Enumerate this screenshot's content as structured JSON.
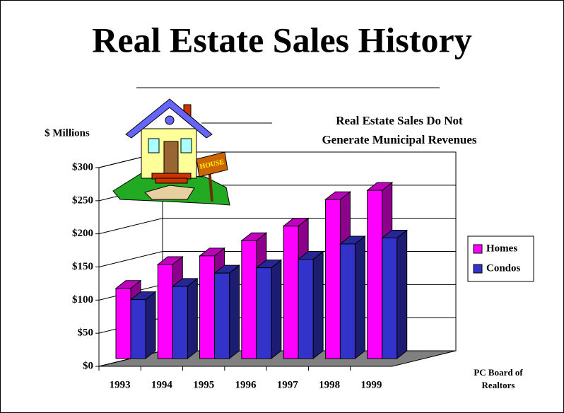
{
  "chart_data": {
    "type": "bar3d",
    "title": "Real Estate Sales History",
    "subtitle": [
      "Real Estate Sales Do Not",
      "Generate Municipal Revenues"
    ],
    "y_label": "$ Millions",
    "source_note": [
      "PC Board of",
      "Realtors"
    ],
    "categories": [
      "1993",
      "1994",
      "1995",
      "1996",
      "1997",
      "1998",
      "1999"
    ],
    "series": [
      {
        "name": "Homes",
        "color": "#ff00ff",
        "values": [
          106,
          142,
          155,
          178,
          200,
          240,
          254
        ]
      },
      {
        "name": "Condos",
        "color": "#3333cc",
        "values": [
          89,
          109,
          129,
          137,
          150,
          173,
          182
        ]
      }
    ],
    "ylim": [
      0,
      300
    ],
    "yticks": [
      {
        "value": 0,
        "label": "$0"
      },
      {
        "value": 50,
        "label": "$50"
      },
      {
        "value": 100,
        "label": "$100"
      },
      {
        "value": 150,
        "label": "$150"
      },
      {
        "value": 200,
        "label": "$200"
      },
      {
        "value": 250,
        "label": "$250"
      },
      {
        "value": 300,
        "label": "$300"
      }
    ],
    "grid": true,
    "legend": "right"
  }
}
